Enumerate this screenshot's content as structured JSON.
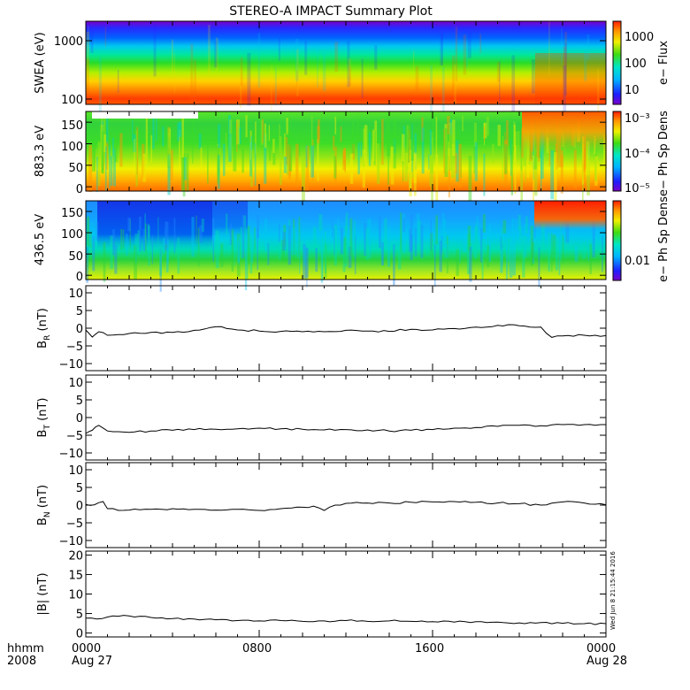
{
  "title": "STEREO-A IMPACT Summary Plot",
  "stamp": "Wed Jun  8 21:15:44 2016",
  "colors": {
    "trace": "#000000",
    "background": "#ffffff"
  },
  "x_axis": {
    "row1_label": "hhmm",
    "row2_label": "2008",
    "ticks": [
      "0000",
      "0800",
      "1600",
      "0000"
    ],
    "dates": [
      "Aug 27",
      "Aug 28"
    ],
    "range_hours": [
      0,
      24
    ]
  },
  "chart_data": [
    {
      "type": "heatmap",
      "name": "swea",
      "ylabel": "SWEA (eV)",
      "ylim": [
        95,
        2000
      ],
      "yscale": "log",
      "yticks": [
        "100",
        "1000"
      ],
      "colorbar": {
        "label": "e− Flux",
        "ticks": [
          "10",
          "100",
          "1000"
        ],
        "scale": "log",
        "range": [
          4,
          3000
        ]
      },
      "description_bands": "red-orange at 100-150 eV, yellow/green 200-600 eV, cyan-blue above 800 eV, purple near 2000 eV"
    },
    {
      "type": "heatmap",
      "name": "pad883",
      "ylabel": "883.3 eV",
      "ylim": [
        -10,
        175
      ],
      "yticks": [
        "0",
        "50",
        "100",
        "150"
      ],
      "colorbar": {
        "label": "e− Ph Sp Dens",
        "ticks": [
          "10⁻³",
          "10⁻⁴",
          "10⁻⁵"
        ],
        "scale": "log",
        "range": [
          8e-06,
          0.0015
        ]
      }
    },
    {
      "type": "heatmap",
      "name": "pad436",
      "ylabel": "436.5 eV",
      "ylim": [
        -10,
        175
      ],
      "yticks": [
        "0",
        "50",
        "100",
        "150"
      ],
      "colorbar": {
        "label": "e− Ph Sp Dens",
        "ticks": [
          "0.01"
        ],
        "scale": "log",
        "range": [
          0.004,
          0.03
        ]
      }
    },
    {
      "type": "line",
      "name": "BR",
      "ylabel": "B",
      "ylabel_sub": "R",
      "ylabel_unit": " (nT)",
      "ylim": [
        -12,
        12
      ],
      "yticks": [
        "10",
        "5",
        "0",
        "−5",
        "−10"
      ],
      "x": [
        0,
        0.3,
        0.6,
        1,
        1.5,
        2,
        3,
        4,
        5,
        6,
        6.5,
        7,
        8,
        9,
        10,
        11,
        12,
        13,
        14,
        15,
        16,
        17,
        18,
        19,
        20,
        21,
        21.5,
        22,
        23,
        24
      ],
      "y": [
        -0.5,
        -2.5,
        -1,
        -2,
        -1.8,
        -1.5,
        -1.2,
        -1.2,
        -0.6,
        0.4,
        -0.1,
        -0.5,
        -0.8,
        -0.9,
        -1,
        -1,
        -0.6,
        -0.8,
        -0.9,
        -0.3,
        -0.5,
        -0.1,
        0.3,
        0.8,
        0.7,
        0.3,
        -2.6,
        -2.2,
        -2,
        -2.1
      ]
    },
    {
      "type": "line",
      "name": "BT",
      "ylabel": "B",
      "ylabel_sub": "T",
      "ylabel_unit": " (nT)",
      "ylim": [
        -12,
        12
      ],
      "yticks": [
        "10",
        "5",
        "0",
        "−5",
        "−10"
      ],
      "x": [
        0,
        0.3,
        0.6,
        1,
        1.5,
        2,
        3,
        4,
        5,
        6,
        7,
        8,
        9,
        10,
        11,
        12,
        13,
        14,
        15,
        16,
        17,
        18,
        19,
        20,
        21,
        22,
        23,
        24
      ],
      "y": [
        -4.5,
        -3.6,
        -2.2,
        -3.8,
        -4,
        -4.2,
        -3.8,
        -3.6,
        -3.4,
        -3.3,
        -3.2,
        -3,
        -3.2,
        -3.3,
        -3.5,
        -3.4,
        -3.5,
        -3.8,
        -3.6,
        -3.4,
        -3,
        -2.8,
        -2.5,
        -2.2,
        -2.3,
        -2,
        -2,
        -2
      ]
    },
    {
      "type": "line",
      "name": "BN",
      "ylabel": "B",
      "ylabel_sub": "N",
      "ylabel_unit": " (nT)",
      "ylim": [
        -12,
        12
      ],
      "yticks": [
        "10",
        "5",
        "0",
        "−5",
        "−10"
      ],
      "x": [
        0,
        0.4,
        0.8,
        1,
        1.5,
        2,
        3,
        4,
        5,
        6,
        7,
        8,
        9,
        10,
        10.5,
        11,
        11.5,
        12,
        13,
        14,
        15,
        16,
        17,
        18,
        19,
        20,
        21,
        22,
        23,
        24
      ],
      "y": [
        0.2,
        0.1,
        1,
        -1,
        -1.5,
        -1.4,
        -1.2,
        -1,
        -1.2,
        -1.4,
        -1.2,
        -1.5,
        -1,
        -0.6,
        -0.3,
        -1.5,
        0,
        0.5,
        0.6,
        0.6,
        0.8,
        0.9,
        1,
        0.8,
        0.6,
        0.4,
        0,
        0.9,
        0.6,
        0.1
      ]
    },
    {
      "type": "line",
      "name": "Bmag",
      "ylabel": "|B| (nT)",
      "ylim": [
        -1,
        21
      ],
      "yticks": [
        "20",
        "15",
        "10",
        "5",
        "0"
      ],
      "x": [
        0,
        0.5,
        1,
        1.5,
        2,
        2.5,
        3,
        4,
        5,
        6,
        7,
        8,
        9,
        10,
        11,
        12,
        13,
        14,
        15,
        16,
        17,
        18,
        19,
        20,
        21,
        22,
        23,
        24
      ],
      "y": [
        3.8,
        3.6,
        4.1,
        4.3,
        4.4,
        4.3,
        4.0,
        3.7,
        3.6,
        3.4,
        3.2,
        3.1,
        3.2,
        3.0,
        3.1,
        3.2,
        3.0,
        3.1,
        3.0,
        2.9,
        2.8,
        2.9,
        2.8,
        2.6,
        2.7,
        2.5,
        2.4,
        2.4
      ]
    }
  ]
}
